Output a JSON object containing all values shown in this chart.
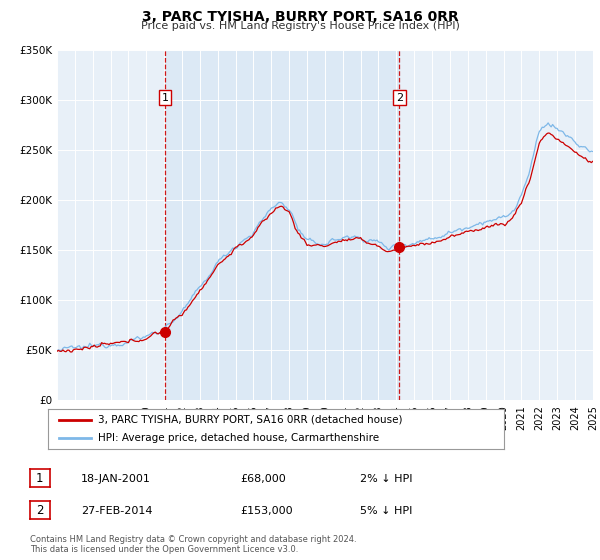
{
  "title": "3, PARC TYISHA, BURRY PORT, SA16 0RR",
  "subtitle": "Price paid vs. HM Land Registry's House Price Index (HPI)",
  "legend_entries": [
    "3, PARC TYISHA, BURRY PORT, SA16 0RR (detached house)",
    "HPI: Average price, detached house, Carmarthenshire"
  ],
  "sale1": {
    "label": "1",
    "date": "18-JAN-2001",
    "price": 68000,
    "price_str": "£68,000",
    "pct": "2% ↓ HPI",
    "x_year": 2001.05
  },
  "sale2": {
    "label": "2",
    "date": "27-FEB-2014",
    "price": 153000,
    "price_str": "£153,000",
    "pct": "5% ↓ HPI",
    "x_year": 2014.16
  },
  "xmin": 1995,
  "xmax": 2025,
  "ymin": 0,
  "ymax": 350000,
  "yticks": [
    0,
    50000,
    100000,
    150000,
    200000,
    250000,
    300000,
    350000
  ],
  "ytick_labels": [
    "£0",
    "£50K",
    "£100K",
    "£150K",
    "£200K",
    "£250K",
    "£300K",
    "£350K"
  ],
  "xticks": [
    1995,
    1996,
    1997,
    1998,
    1999,
    2000,
    2001,
    2002,
    2003,
    2004,
    2005,
    2006,
    2007,
    2008,
    2009,
    2010,
    2011,
    2012,
    2013,
    2014,
    2015,
    2016,
    2017,
    2018,
    2019,
    2020,
    2021,
    2022,
    2023,
    2024,
    2025
  ],
  "hpi_color": "#7eb8e8",
  "price_color": "#cc0000",
  "vline_color": "#cc0000",
  "shade_color": "#dce9f5",
  "plot_bg_color": "#e8f0f8",
  "grid_color": "#ffffff",
  "footer_text": "Contains HM Land Registry data © Crown copyright and database right 2024.\nThis data is licensed under the Open Government Licence v3.0.",
  "note_box_color": "#cc0000",
  "anchors_x": [
    1995,
    1996,
    1997,
    1998,
    1999,
    2000,
    2001,
    2002,
    2003,
    2004,
    2005,
    2006,
    2007,
    2007.5,
    2008,
    2008.5,
    2009,
    2010,
    2011,
    2012,
    2013,
    2013.5,
    2014,
    2015,
    2016,
    2017,
    2018,
    2019,
    2020,
    2020.5,
    2021,
    2021.5,
    2022,
    2022.5,
    2023,
    2023.5,
    2024,
    2024.5,
    2025
  ],
  "hpi_anchors_y": [
    50000,
    52000,
    54000,
    57000,
    59000,
    64000,
    72000,
    88000,
    112000,
    138000,
    155000,
    168000,
    192000,
    198000,
    192000,
    172000,
    158000,
    157000,
    163000,
    163000,
    158000,
    152000,
    155000,
    158000,
    162000,
    168000,
    174000,
    180000,
    182000,
    188000,
    205000,
    230000,
    268000,
    278000,
    272000,
    265000,
    258000,
    252000,
    248000
  ],
  "price_anchors_y": [
    49000,
    51000,
    53000,
    56000,
    58000,
    63000,
    70000,
    86000,
    110000,
    135000,
    152000,
    165000,
    188000,
    195000,
    188000,
    168000,
    155000,
    155000,
    160000,
    160000,
    155000,
    148000,
    152000,
    155000,
    158000,
    163000,
    168000,
    174000,
    176000,
    182000,
    198000,
    222000,
    258000,
    268000,
    262000,
    255000,
    248000,
    242000,
    238000
  ]
}
